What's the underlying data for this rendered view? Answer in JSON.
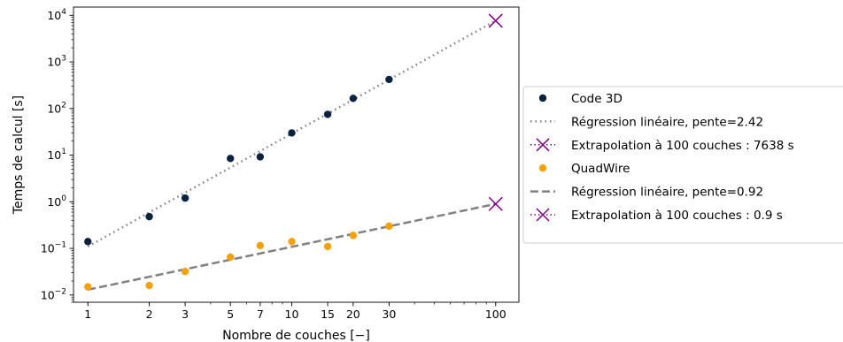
{
  "chart_data": {
    "type": "scatter",
    "xlabel": "Nombre de couches [−]",
    "ylabel": "Temps de calcul [s]",
    "xscale": "log",
    "yscale": "log",
    "xlim": [
      0.85,
      130
    ],
    "ylim": [
      0.007,
      15000
    ],
    "xticks": [
      1,
      2,
      3,
      5,
      7,
      10,
      15,
      20,
      30,
      100
    ],
    "xtick_labels": [
      "1",
      "2",
      "3",
      "5",
      "7",
      "10",
      "15",
      "20",
      "30",
      "100"
    ],
    "yticks": [
      0.01,
      0.1,
      1,
      10,
      100,
      1000,
      10000
    ],
    "ytick_labels": [
      {
        "base": "10",
        "exp": "−2"
      },
      {
        "base": "10",
        "exp": "−1"
      },
      {
        "base": "10",
        "exp": "0"
      },
      {
        "base": "10",
        "exp": "1"
      },
      {
        "base": "10",
        "exp": "2"
      },
      {
        "base": "10",
        "exp": "3"
      },
      {
        "base": "10",
        "exp": "4"
      }
    ],
    "grid": false,
    "legend_position": "outside-right",
    "series": [
      {
        "name": "Code 3D",
        "kind": "scatter",
        "color": "#0d2240",
        "x": [
          1,
          2,
          3,
          5,
          7,
          10,
          15,
          20,
          30
        ],
        "y": [
          0.14,
          0.48,
          1.2,
          8.5,
          9.2,
          30,
          75,
          165,
          420
        ]
      },
      {
        "name": "Régression linéaire, pente=2.42",
        "kind": "line",
        "style": "dotted",
        "color": "#808080",
        "x": [
          1,
          100
        ],
        "y": [
          0.11,
          7638
        ]
      },
      {
        "name": "Extrapolation à 100 couches : 7638 s",
        "kind": "marker-x",
        "color": "#800080",
        "x": [
          100
        ],
        "y": [
          7638
        ]
      },
      {
        "name": "QuadWire",
        "kind": "scatter",
        "color": "#f5a20a",
        "x": [
          1,
          2,
          3,
          5,
          7,
          10,
          15,
          20,
          30
        ],
        "y": [
          0.015,
          0.016,
          0.032,
          0.065,
          0.115,
          0.14,
          0.11,
          0.19,
          0.3
        ]
      },
      {
        "name": "Régression linéaire, pente=0.92",
        "kind": "line",
        "style": "dashed",
        "color": "#808080",
        "x": [
          1,
          100
        ],
        "y": [
          0.013,
          0.9
        ]
      },
      {
        "name": "Extrapolation à 100 couches : 0.9 s",
        "kind": "marker-x",
        "color": "#800080",
        "x": [
          100
        ],
        "y": [
          0.9
        ]
      }
    ]
  }
}
